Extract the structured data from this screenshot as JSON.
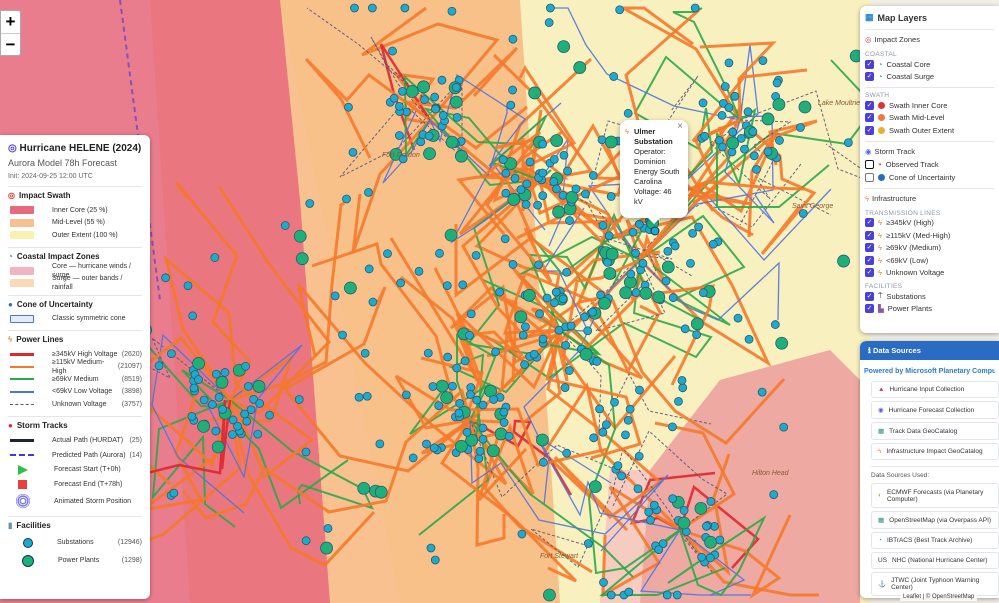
{
  "map": {
    "labels": [
      "Fort Gordon",
      "Fort Stewart",
      "Saint George",
      "Hilton Head",
      "Lake Moultrie"
    ],
    "attribution": "Leaflet | © OpenStreetMap",
    "zoom_in": "+",
    "zoom_out": "−",
    "colors": {
      "swath_inner": "#e8697e",
      "swath_mid": "#f9b880",
      "swath_outer": "#faf0b8",
      "line_345": "#e0262f",
      "line_115": "#f5792a",
      "line_69": "#2aa84a",
      "line_low": "#4b74e0",
      "substation": "#1eaacd",
      "plant": "#1fb07a"
    }
  },
  "popup": {
    "title": "Ulmer Substation",
    "operator": "Operator: Dominion Energy South Carolina",
    "voltage": "Voltage: 46 kV",
    "close": "×"
  },
  "legend": {
    "title": "Hurricane HELENE (2024)",
    "subtitle": "Aurora Model 78h Forecast",
    "init": "Init: 2024-09-25 12:00 UTC",
    "swath": {
      "heading": "Impact Swath",
      "items": [
        {
          "label": "Inner Core (25 %)",
          "color": "#e8697e"
        },
        {
          "label": "Mid-Level (55 %)",
          "color": "#f9c08f"
        },
        {
          "label": "Outer Extent (100 %)",
          "color": "#faf0b0"
        }
      ]
    },
    "coastal": {
      "heading": "Coastal Impact Zones",
      "items": [
        {
          "label": "Core — hurricane winds / surge",
          "color": "#f2b4c0"
        },
        {
          "label": "Surge — outer bands / rainfall",
          "color": "#fbd8b8"
        }
      ]
    },
    "cone": {
      "heading": "Cone of Uncertainty",
      "items": [
        {
          "label": "Classic symmetric cone"
        }
      ]
    },
    "lines": {
      "heading": "Power Lines",
      "items": [
        {
          "label": "≥345kV High Voltage",
          "count": "(2620)",
          "color": "#e0262f"
        },
        {
          "label": "≥115kV Medium-High",
          "count": "(21097)",
          "color": "#f5792a"
        },
        {
          "label": "≥69kV Medium",
          "count": "(8519)",
          "color": "#2aa84a"
        },
        {
          "label": "<69kV Low Voltage",
          "count": "(3898)",
          "color": "#4b74e0"
        },
        {
          "label": "Unknown Voltage",
          "count": "(3757)",
          "color": "#555577"
        }
      ]
    },
    "tracks": {
      "heading": "Storm Tracks",
      "items": [
        {
          "label": "Actual Path (HURDAT)",
          "count": "(25)"
        },
        {
          "label": "Predicted Path (Aurora)",
          "count": "(14)"
        },
        {
          "label": "Forecast Start (T+0h)"
        },
        {
          "label": "Forecast End (T+78h)"
        },
        {
          "label": "Animated Storm Position"
        }
      ]
    },
    "facilities": {
      "heading": "Facilities",
      "items": [
        {
          "label": "Substations",
          "count": "(12946)"
        },
        {
          "label": "Power Plants",
          "count": "(1298)"
        }
      ]
    }
  },
  "layers": {
    "title": "Map Layers",
    "impact": {
      "heading": "Impact Zones",
      "coastal_cap": "COASTAL",
      "coastal": [
        {
          "label": "Coastal Core",
          "checked": true
        },
        {
          "label": "Coastal Surge",
          "checked": true
        }
      ],
      "swath_cap": "SWATH",
      "swath": [
        {
          "label": "Swath Inner Core",
          "checked": true,
          "color": "#e0303c"
        },
        {
          "label": "Swath Mid-Level",
          "checked": true,
          "color": "#f5793a"
        },
        {
          "label": "Swath Outer Extent",
          "checked": true,
          "color": "#e8b030"
        }
      ]
    },
    "track": {
      "heading": "Storm Track",
      "items": [
        {
          "label": "Observed Track",
          "checked": false
        },
        {
          "label": "Cone of Uncertainty",
          "checked": false
        }
      ]
    },
    "infra": {
      "heading": "Infrastructure",
      "lines_cap": "TRANSMISSION LINES",
      "lines": [
        {
          "label": "≥345kV (High)",
          "checked": true
        },
        {
          "label": "≥115kV (Med-High)",
          "checked": true
        },
        {
          "label": "≥69kV (Medium)",
          "checked": true
        },
        {
          "label": "<69kV (Low)",
          "checked": true
        },
        {
          "label": "Unknown Voltage",
          "checked": true
        }
      ],
      "fac_cap": "FACILITIES",
      "facilities": [
        {
          "label": "Substations",
          "checked": true
        },
        {
          "label": "Power Plants",
          "checked": true
        }
      ]
    }
  },
  "sources": {
    "heading": "Data Sources",
    "powered": "Powered by Microsoft Planetary Computer Pro",
    "catalogs": [
      "Hurricane Input Collection",
      "Hurricane Forecast Collection",
      "Track Data GeoCatalog",
      "Infrastructure Impact GeoCatalog"
    ],
    "used_label": "Data Sources Used:",
    "used": [
      "ECMWF Forecasts (via Planetary Computer)",
      "OpenStreetMap (via Overpass API)",
      "IBTrACS (Best Track Archive)",
      "NHC (National Hurricane Center)",
      "JTWC (Joint Typhoon Warning Center)"
    ],
    "nhc_prefix": "US"
  }
}
